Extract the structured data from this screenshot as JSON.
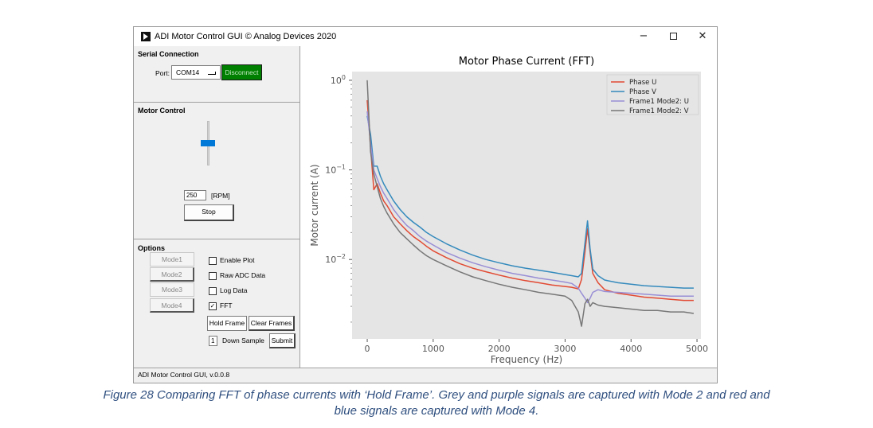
{
  "window": {
    "title": "ADI Motor Control GUI © Analog Devices 2020",
    "min": "−",
    "close": "✕"
  },
  "serial": {
    "title": "Serial Connection",
    "port_label": "Port:",
    "port_value": "COM14",
    "disconnect_label": "Disconnect"
  },
  "motor": {
    "title": "Motor Control",
    "speed_value": "250",
    "unit": "[RPM]",
    "stop_label": "Stop",
    "slider_level": 0.5
  },
  "options": {
    "title": "Options",
    "modes": [
      {
        "label": "Mode1",
        "pressed": false
      },
      {
        "label": "Mode2",
        "pressed": true
      },
      {
        "label": "Mode3",
        "pressed": false
      },
      {
        "label": "Mode4",
        "pressed": true
      }
    ],
    "checkboxes": [
      {
        "label": "Enable Plot",
        "checked": false
      },
      {
        "label": "Raw ADC Data",
        "checked": false
      },
      {
        "label": "Log Data",
        "checked": false
      },
      {
        "label": "FFT",
        "checked": true
      }
    ],
    "hold_frame_label": "Hold Frame",
    "clear_frames_label": "Clear Frames",
    "down_sample_value": "1",
    "down_sample_label": "Down Sample",
    "submit_label": "Submit"
  },
  "status_text": "ADI Motor Control GUI, v.0.0.8",
  "caption": {
    "line1": "Figure 28 Comparing FFT of phase currents with ‘Hold Frame’. Grey and purple signals are captured with Mode 2 and red and",
    "line2": "blue signals are captured with Mode 4."
  },
  "colors": {
    "green_button": "#008000",
    "slider_thumb": "#0078d7",
    "caption": "#2f4f7f"
  },
  "chart_data": {
    "type": "line",
    "title": "Motor Phase Current (FFT)",
    "xlabel": "Frequency (Hz)",
    "ylabel": "Motor current (A)",
    "xlim": [
      -230,
      5060
    ],
    "ylim": [
      0.0013,
      1.25
    ],
    "yscale": "log",
    "xticks": [
      0,
      1000,
      2000,
      3000,
      4000,
      5000
    ],
    "xtick_labels": [
      "0",
      "1000",
      "2000",
      "3000",
      "4000",
      "5000"
    ],
    "yticks": [
      1,
      0.1,
      0.01
    ],
    "ytick_labels": [
      {
        "base": "10",
        "exp": "0"
      },
      {
        "base": "10",
        "exp": "−1"
      },
      {
        "base": "10",
        "exp": "−2"
      }
    ],
    "grid": false,
    "legend_position": "top-right",
    "x": [
      0,
      50,
      100,
      150,
      200,
      250,
      300,
      400,
      500,
      600,
      700,
      800,
      900,
      1000,
      1200,
      1400,
      1600,
      1800,
      2000,
      2200,
      2400,
      2600,
      2800,
      3000,
      3100,
      3200,
      3250,
      3300,
      3340,
      3380,
      3420,
      3500,
      3600,
      3800,
      4000,
      4200,
      4400,
      4600,
      4800,
      4950
    ],
    "series": [
      {
        "name": "Phase U",
        "color": "#e24a33",
        "values": [
          0.6,
          0.18,
          0.06,
          0.07,
          0.055,
          0.045,
          0.04,
          0.03,
          0.025,
          0.021,
          0.018,
          0.016,
          0.014,
          0.0125,
          0.0105,
          0.009,
          0.008,
          0.0073,
          0.0067,
          0.0062,
          0.0058,
          0.0055,
          0.0052,
          0.005,
          0.0049,
          0.0047,
          0.006,
          0.012,
          0.022,
          0.012,
          0.007,
          0.0055,
          0.0046,
          0.0042,
          0.004,
          0.0038,
          0.0037,
          0.0036,
          0.0035,
          0.0035
        ]
      },
      {
        "name": "Phase V",
        "color": "#348abd",
        "values": [
          0.4,
          0.25,
          0.11,
          0.11,
          0.085,
          0.07,
          0.06,
          0.045,
          0.036,
          0.03,
          0.026,
          0.023,
          0.02,
          0.018,
          0.015,
          0.0128,
          0.0112,
          0.01,
          0.0092,
          0.0085,
          0.008,
          0.0076,
          0.0072,
          0.0068,
          0.0066,
          0.0064,
          0.007,
          0.015,
          0.027,
          0.013,
          0.0078,
          0.0066,
          0.0059,
          0.0055,
          0.0053,
          0.0051,
          0.005,
          0.0049,
          0.0048,
          0.0048
        ]
      },
      {
        "name": "Frame1 Mode2: U",
        "color": "#988ed5",
        "values": [
          0.45,
          0.2,
          0.1,
          0.08,
          0.065,
          0.055,
          0.048,
          0.036,
          0.029,
          0.024,
          0.021,
          0.018,
          0.016,
          0.0145,
          0.012,
          0.0104,
          0.0092,
          0.0083,
          0.0076,
          0.007,
          0.0066,
          0.0062,
          0.0059,
          0.0056,
          0.0054,
          0.0048,
          0.0042,
          0.0037,
          0.0033,
          0.0037,
          0.0043,
          0.0046,
          0.0044,
          0.0043,
          0.0042,
          0.0041,
          0.004,
          0.0039,
          0.0039,
          0.0039
        ]
      },
      {
        "name": "Frame1 Mode2: V",
        "color": "#777777",
        "values": [
          1.0,
          0.16,
          0.09,
          0.065,
          0.048,
          0.039,
          0.033,
          0.025,
          0.02,
          0.017,
          0.0145,
          0.0125,
          0.011,
          0.01,
          0.0085,
          0.0073,
          0.0064,
          0.0058,
          0.0053,
          0.0049,
          0.0046,
          0.0043,
          0.0041,
          0.0039,
          0.0035,
          0.0026,
          0.0018,
          0.0032,
          0.0036,
          0.003,
          0.0033,
          0.0031,
          0.003,
          0.0029,
          0.0028,
          0.0027,
          0.0027,
          0.0026,
          0.0026,
          0.0025
        ]
      }
    ]
  }
}
